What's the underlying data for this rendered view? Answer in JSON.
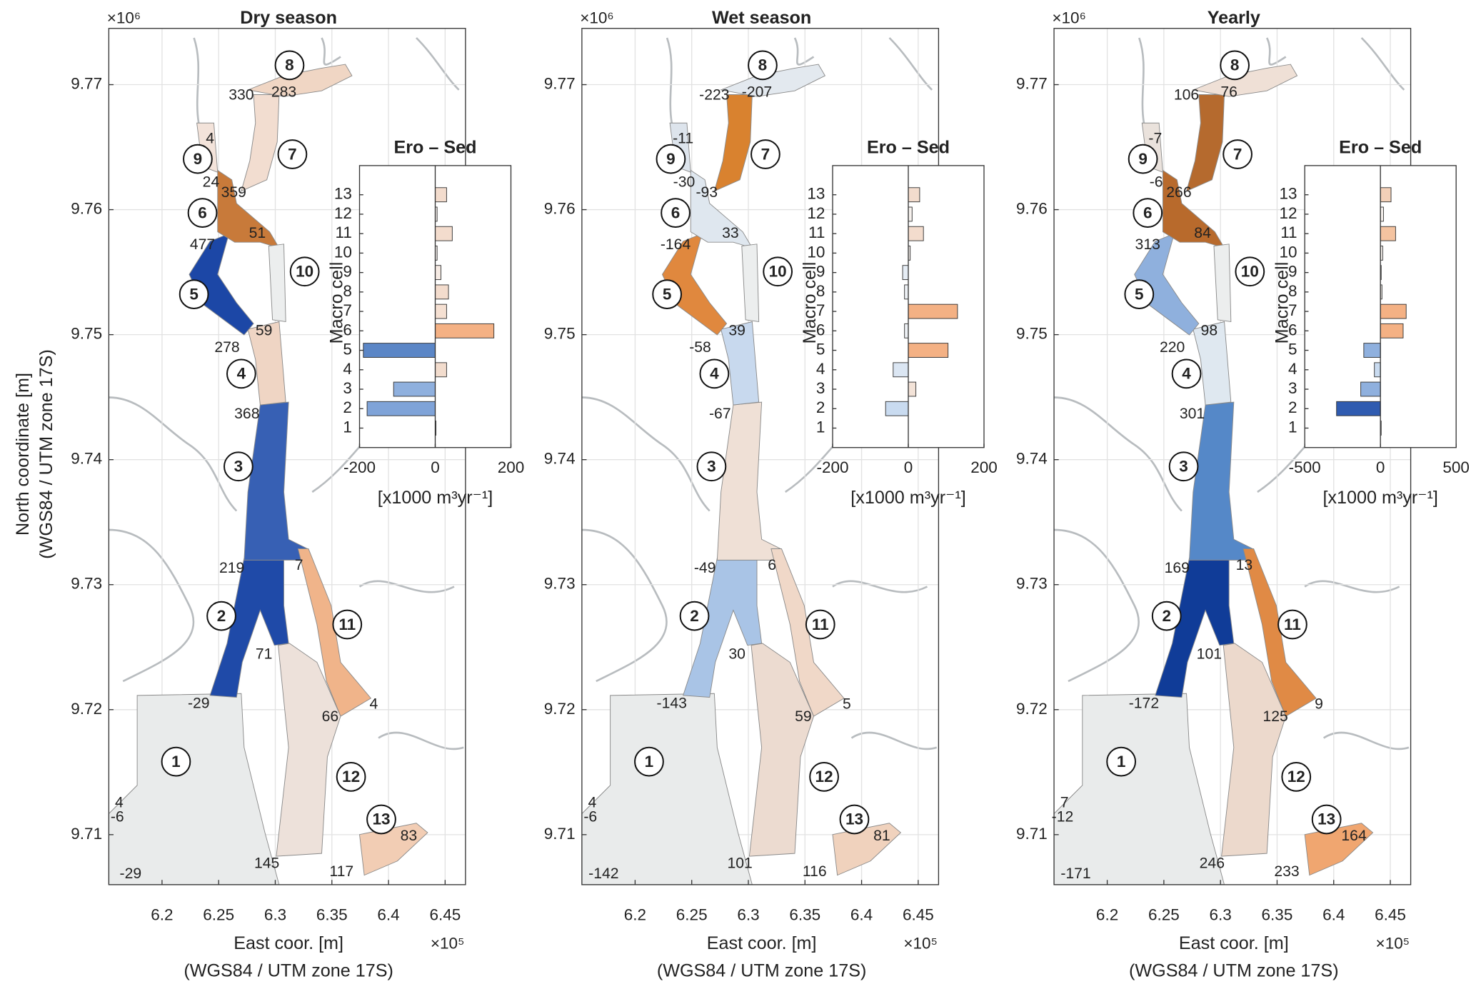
{
  "chart_data": [
    {
      "type": "map",
      "title": "Dry season",
      "x_multiplier": "×10⁵",
      "y_multiplier": "×10⁶",
      "xlabel": "East coor. [m]",
      "xlabel2": "(WGS84 / UTM zone 17S)",
      "ylabel": "North coordinate [m]",
      "ylabel2": "(WGS84 / UTM zone 17S)",
      "xlim": [
        6.153,
        6.468
      ],
      "ylim": [
        9.706,
        9.7745
      ],
      "xticks": [
        6.2,
        6.25,
        6.3,
        6.35,
        6.4,
        6.45
      ],
      "yticks": [
        9.71,
        9.72,
        9.73,
        9.74,
        9.75,
        9.76,
        9.77
      ],
      "grid": true,
      "cells": [
        "1",
        "2",
        "3",
        "4",
        "5",
        "6",
        "7",
        "8",
        "9",
        "10",
        "11",
        "12",
        "13"
      ],
      "cell_colors": [
        "#e9ebeb",
        "#1f4aa8",
        "#3760b4",
        "#efd5c4",
        "#1c47a6",
        "#c87a3a",
        "#f2ddd0",
        "#f0d6c4",
        "#f3e3da",
        "#eceeee",
        "#f0b48a",
        "#ede1da",
        "#f2cdb4"
      ],
      "boundary_values": [
        330,
        283,
        4,
        24,
        359,
        477,
        51,
        59,
        278,
        368,
        219,
        7,
        71,
        -29,
        66,
        4,
        4,
        -6,
        -29,
        145,
        117,
        83
      ],
      "inset": {
        "type": "barh",
        "title": "Ero – Sed",
        "ylabel": "Macro cell",
        "xlabel": "[x1000 m³yr⁻¹]",
        "categories": [
          "1",
          "2",
          "3",
          "4",
          "5",
          "6",
          "7",
          "8",
          "9",
          "10",
          "11",
          "12",
          "13"
        ],
        "values": [
          2,
          -180,
          -110,
          30,
          -190,
          155,
          30,
          35,
          15,
          5,
          45,
          5,
          30
        ],
        "colors": [
          "#eeeeee",
          "#7fa3d8",
          "#8fb0de",
          "#f2dccd",
          "#5b86c6",
          "#f4b184",
          "#f5e0d2",
          "#f3dccd",
          "#f6ebe4",
          "#f7f2ee",
          "#f3dccd",
          "#f7f2ee",
          "#f3dccd"
        ],
        "xlim": [
          -200,
          200
        ],
        "xticks": [
          -200,
          0,
          200
        ]
      }
    },
    {
      "type": "map",
      "title": "Wet season",
      "x_multiplier": "×10⁵",
      "y_multiplier": "×10⁶",
      "xlabel": "East coor. [m]",
      "xlabel2": "(WGS84 / UTM zone 17S)",
      "xlim": [
        6.153,
        6.468
      ],
      "ylim": [
        9.706,
        9.7745
      ],
      "xticks": [
        6.2,
        6.25,
        6.3,
        6.35,
        6.4,
        6.45
      ],
      "yticks": [
        9.71,
        9.72,
        9.73,
        9.74,
        9.75,
        9.76,
        9.77
      ],
      "grid": true,
      "cells": [
        "1",
        "2",
        "3",
        "4",
        "5",
        "6",
        "7",
        "8",
        "9",
        "10",
        "11",
        "12",
        "13"
      ],
      "cell_colors": [
        "#e9ebeb",
        "#a9c4e6",
        "#efe0d6",
        "#c8d9ee",
        "#e0883e",
        "#dfe7ef",
        "#d9822f",
        "#e3e9ef",
        "#dde4ec",
        "#eceeee",
        "#f0d8c8",
        "#ecdbd0",
        "#f0d2bd"
      ],
      "boundary_values": [
        -223,
        -207,
        -11,
        -30,
        -93,
        -164,
        33,
        39,
        -58,
        -67,
        -49,
        6,
        30,
        -143,
        59,
        5,
        4,
        -6,
        -142,
        101,
        116,
        81
      ],
      "inset": {
        "type": "barh",
        "title": "Ero – Sed",
        "ylabel": "Macro cell",
        "xlabel": "[x1000 m³yr⁻¹]",
        "categories": [
          "1",
          "2",
          "3",
          "4",
          "5",
          "6",
          "7",
          "8",
          "9",
          "10",
          "11",
          "12",
          "13"
        ],
        "values": [
          0,
          -60,
          20,
          -40,
          105,
          -10,
          130,
          -10,
          -15,
          5,
          40,
          10,
          30
        ],
        "colors": [
          "#eeeeee",
          "#c9dbf0",
          "#f3e3d8",
          "#dbe6f3",
          "#f4b184",
          "#eef2f6",
          "#f4b184",
          "#eef2f6",
          "#e6edf5",
          "#f7f2ee",
          "#f3dccd",
          "#f7f2ee",
          "#f3dccd"
        ],
        "xlim": [
          -200,
          200
        ],
        "xticks": [
          -200,
          0,
          200
        ]
      }
    },
    {
      "type": "map",
      "title": "Yearly",
      "x_multiplier": "×10⁵",
      "y_multiplier": "×10⁶",
      "xlabel": "East coor. [m]",
      "xlabel2": "(WGS84 / UTM zone 17S)",
      "xlim": [
        6.153,
        6.468
      ],
      "ylim": [
        9.706,
        9.7745
      ],
      "xticks": [
        6.2,
        6.25,
        6.3,
        6.35,
        6.4,
        6.45
      ],
      "yticks": [
        9.71,
        9.72,
        9.73,
        9.74,
        9.75,
        9.76,
        9.77
      ],
      "grid": true,
      "cells": [
        "1",
        "2",
        "3",
        "4",
        "5",
        "6",
        "7",
        "8",
        "9",
        "10",
        "11",
        "12",
        "13"
      ],
      "cell_colors": [
        "#e9ebeb",
        "#103c98",
        "#5588c8",
        "#dfe8f0",
        "#8fb0dd",
        "#b86a2c",
        "#b56a2e",
        "#efe0d6",
        "#eae2dc",
        "#eceeee",
        "#e08a45",
        "#ecd9cc",
        "#f0a670"
      ],
      "boundary_values": [
        106,
        76,
        -7,
        -6,
        266,
        313,
        84,
        98,
        220,
        301,
        169,
        13,
        101,
        -172,
        125,
        9,
        7,
        -12,
        -171,
        246,
        233,
        164
      ],
      "inset": {
        "type": "barh",
        "title": "Ero – Sed",
        "ylabel": "Macro cell",
        "xlabel": "[x1000 m³yr⁻¹]",
        "categories": [
          "1",
          "2",
          "3",
          "4",
          "5",
          "6",
          "7",
          "8",
          "9",
          "10",
          "11",
          "12",
          "13"
        ],
        "values": [
          5,
          -290,
          -130,
          -40,
          -110,
          150,
          170,
          10,
          5,
          15,
          100,
          20,
          70
        ],
        "colors": [
          "#eeeeee",
          "#2f5bb0",
          "#8fb0de",
          "#c9dbf0",
          "#8fb0de",
          "#f4b184",
          "#f4b184",
          "#f7f2ee",
          "#f7f2ee",
          "#f7f2ee",
          "#f4c3a0",
          "#f7f2ee",
          "#f3d0b8"
        ],
        "xlim": [
          -500,
          500
        ],
        "xticks": [
          -500,
          0,
          500
        ]
      }
    }
  ]
}
